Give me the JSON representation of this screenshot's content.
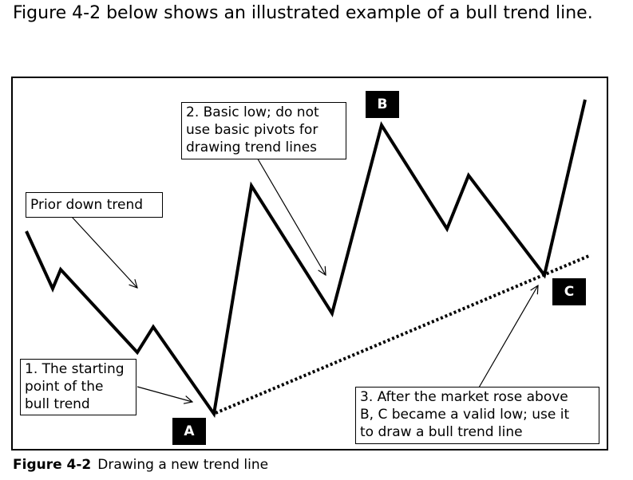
{
  "intro_text": "Figure 4-2 below shows an illustrated example of a bull trend line.",
  "callouts": {
    "prior_down_trend": "Prior down trend",
    "basic_low_1": "2. Basic low; do not",
    "basic_low_2": "use basic pivots for",
    "basic_low_3": "drawing trend lines",
    "starting_1": "1. The starting",
    "starting_2": "point of the",
    "starting_3": "bull trend",
    "after_1": "3. After the market rose above",
    "after_2": "B, C became a valid low; use it",
    "after_3": "to draw a bull trend line"
  },
  "point_labels": {
    "a": "A",
    "b": "B",
    "c": "C"
  },
  "caption": {
    "figure_label": "Figure 4-2",
    "title": "Drawing a new trend line"
  }
}
